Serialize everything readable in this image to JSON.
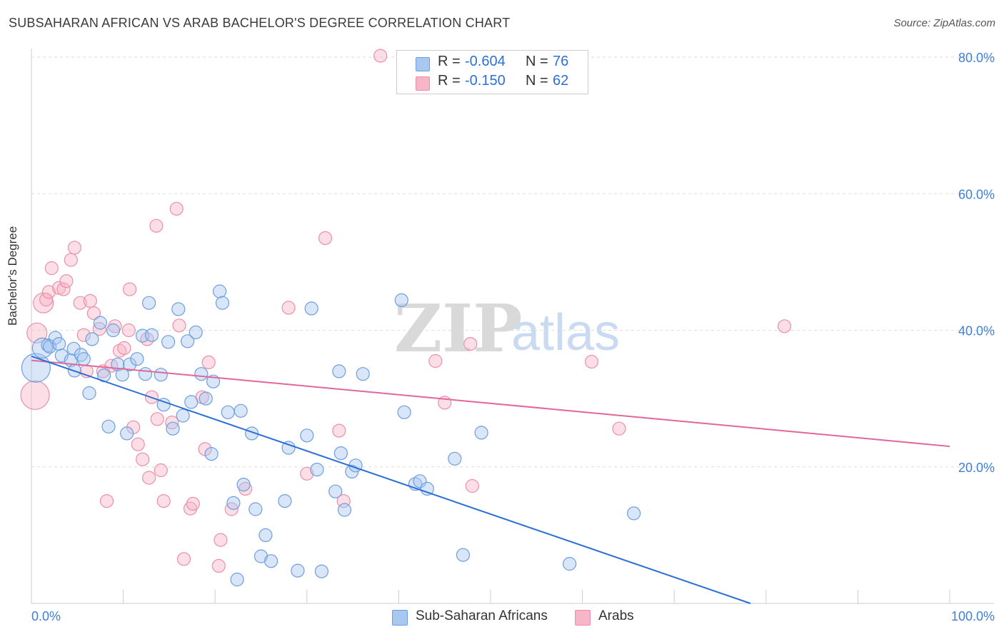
{
  "header": {
    "title": "SUBSAHARAN AFRICAN VS ARAB BACHELOR'S DEGREE CORRELATION CHART",
    "source": "Source: ZipAtlas.com"
  },
  "watermark": {
    "zip": "ZIP",
    "atlas": "atlas"
  },
  "legend": {
    "rows": [
      {
        "r_label": "R =",
        "r_value": "-0.604",
        "n_label": "N =",
        "n_value": "76",
        "color": "#a9c8f0"
      },
      {
        "r_label": "R =",
        "r_value": "-0.150",
        "n_label": "N =",
        "n_value": "62",
        "color": "#f7b6c8"
      }
    ]
  },
  "bottom_legend": {
    "items": [
      {
        "label": "Sub-Saharan Africans",
        "color": "#a9c8f0"
      },
      {
        "label": "Arabs",
        "color": "#f7b6c8"
      }
    ]
  },
  "colors": {
    "blue_fill": "#a9c8f0",
    "blue_stroke": "#6e9ee0",
    "blue_line": "#2a6fd6",
    "pink_fill": "#f7b6c8",
    "pink_stroke": "#ec8fab",
    "pink_line": "#e2679a",
    "tick_text": "#3f7fd6",
    "grid": "#dddddd"
  },
  "chart_data": {
    "type": "scatter",
    "title": "SUBSAHARAN AFRICAN VS ARAB BACHELOR'S DEGREE CORRELATION CHART",
    "xlabel": "",
    "ylabel": "Bachelor's Degree",
    "xlim": [
      0,
      100
    ],
    "ylim": [
      0,
      80
    ],
    "x_tick_labels": [
      "0.0%",
      "100.0%"
    ],
    "y_ticks": [
      20,
      40,
      60,
      80
    ],
    "y_tick_labels": [
      "20.0%",
      "40.0%",
      "60.0%",
      "80.0%"
    ],
    "grid": true,
    "legend_position": "top-center",
    "series": [
      {
        "name": "Sub-Saharan Africans",
        "r": -0.604,
        "n": 76,
        "trend": {
          "x": [
            0,
            78.3
          ],
          "y": [
            36.2,
            0
          ]
        },
        "points": [
          [
            0.5,
            34.5,
            3
          ],
          [
            1.2,
            37.4,
            2
          ],
          [
            1.8,
            37.8,
            1
          ],
          [
            2.0,
            37.6,
            1
          ],
          [
            2.6,
            38.9,
            1
          ],
          [
            3.0,
            38.0,
            1
          ],
          [
            3.3,
            36.3,
            1
          ],
          [
            4.3,
            35.6,
            1
          ],
          [
            4.6,
            37.3,
            1
          ],
          [
            4.7,
            34.1,
            1
          ],
          [
            5.4,
            36.4,
            1
          ],
          [
            5.7,
            35.8,
            1
          ],
          [
            6.3,
            30.8,
            1
          ],
          [
            6.6,
            38.7,
            1
          ],
          [
            7.5,
            41.1,
            1
          ],
          [
            7.9,
            33.4,
            1
          ],
          [
            8.4,
            25.9,
            1
          ],
          [
            8.9,
            40.0,
            1
          ],
          [
            9.4,
            35.0,
            1
          ],
          [
            9.9,
            33.5,
            1
          ],
          [
            10.4,
            24.9,
            1
          ],
          [
            10.7,
            35.0,
            1
          ],
          [
            11.5,
            35.8,
            1
          ],
          [
            12.1,
            39.2,
            1
          ],
          [
            12.4,
            33.6,
            1
          ],
          [
            12.8,
            44.0,
            1
          ],
          [
            13.1,
            39.3,
            1
          ],
          [
            14.1,
            33.5,
            1
          ],
          [
            14.4,
            29.1,
            1
          ],
          [
            14.9,
            38.3,
            1
          ],
          [
            15.4,
            25.6,
            1
          ],
          [
            16.0,
            43.1,
            1
          ],
          [
            16.5,
            27.5,
            1
          ],
          [
            17.0,
            38.4,
            1
          ],
          [
            17.4,
            29.5,
            1
          ],
          [
            17.9,
            39.7,
            1
          ],
          [
            18.5,
            33.6,
            1
          ],
          [
            19.0,
            30.0,
            1
          ],
          [
            19.6,
            21.9,
            1
          ],
          [
            19.8,
            32.5,
            1
          ],
          [
            20.5,
            45.7,
            1
          ],
          [
            20.8,
            44.0,
            1
          ],
          [
            21.4,
            28.0,
            1
          ],
          [
            22.0,
            14.7,
            1
          ],
          [
            22.4,
            3.5,
            1
          ],
          [
            22.8,
            28.2,
            1
          ],
          [
            23.1,
            17.4,
            1
          ],
          [
            24.0,
            24.9,
            1
          ],
          [
            24.4,
            13.8,
            1
          ],
          [
            25.0,
            6.9,
            1
          ],
          [
            25.5,
            10.0,
            1
          ],
          [
            26.1,
            6.2,
            1
          ],
          [
            27.6,
            15.0,
            1
          ],
          [
            28.0,
            22.8,
            1
          ],
          [
            29.0,
            4.8,
            1
          ],
          [
            30.0,
            24.6,
            1
          ],
          [
            30.5,
            43.2,
            1
          ],
          [
            31.1,
            19.6,
            1
          ],
          [
            31.6,
            4.7,
            1
          ],
          [
            33.1,
            16.4,
            1
          ],
          [
            33.5,
            34.0,
            1
          ],
          [
            33.7,
            22.0,
            1
          ],
          [
            34.1,
            13.7,
            1
          ],
          [
            34.9,
            19.3,
            1
          ],
          [
            35.3,
            20.2,
            1
          ],
          [
            36.1,
            33.6,
            1
          ],
          [
            40.3,
            44.4,
            1
          ],
          [
            40.6,
            28.0,
            1
          ],
          [
            41.8,
            17.5,
            1
          ],
          [
            42.3,
            17.9,
            1
          ],
          [
            43.1,
            16.8,
            1
          ],
          [
            46.1,
            21.2,
            1
          ],
          [
            47.0,
            7.1,
            1
          ],
          [
            49.0,
            25.0,
            1
          ],
          [
            58.6,
            5.8,
            1
          ],
          [
            65.6,
            13.2,
            1
          ]
        ]
      },
      {
        "name": "Arabs",
        "r": -0.15,
        "n": 62,
        "trend": {
          "x": [
            0,
            100
          ],
          "y": [
            35.6,
            23.0
          ]
        },
        "points": [
          [
            0.4,
            30.5,
            3
          ],
          [
            0.6,
            39.6,
            2
          ],
          [
            1.3,
            44.0,
            2
          ],
          [
            1.6,
            44.5,
            1
          ],
          [
            1.9,
            45.6,
            1
          ],
          [
            2.2,
            49.1,
            1
          ],
          [
            3.0,
            46.2,
            1
          ],
          [
            3.5,
            46.0,
            1
          ],
          [
            3.8,
            47.2,
            1
          ],
          [
            4.3,
            50.3,
            1
          ],
          [
            4.7,
            52.1,
            1
          ],
          [
            5.3,
            44.0,
            1
          ],
          [
            5.7,
            39.3,
            1
          ],
          [
            6.0,
            34.0,
            1
          ],
          [
            6.4,
            44.3,
            1
          ],
          [
            6.8,
            42.5,
            1
          ],
          [
            7.4,
            40.2,
            1
          ],
          [
            7.8,
            34.0,
            1
          ],
          [
            8.2,
            15.0,
            1
          ],
          [
            8.7,
            34.8,
            1
          ],
          [
            9.1,
            40.6,
            1
          ],
          [
            9.6,
            37.0,
            1
          ],
          [
            10.1,
            37.4,
            1
          ],
          [
            10.6,
            40.0,
            1
          ],
          [
            10.7,
            46.0,
            1
          ],
          [
            11.1,
            25.8,
            1
          ],
          [
            11.6,
            23.3,
            1
          ],
          [
            12.1,
            21.1,
            1
          ],
          [
            12.6,
            38.7,
            1
          ],
          [
            12.8,
            18.4,
            1
          ],
          [
            13.1,
            30.2,
            1
          ],
          [
            13.6,
            55.3,
            1
          ],
          [
            13.7,
            27.0,
            1
          ],
          [
            14.1,
            19.5,
            1
          ],
          [
            14.4,
            15.0,
            1
          ],
          [
            15.3,
            26.5,
            1
          ],
          [
            15.8,
            57.8,
            1
          ],
          [
            16.1,
            40.7,
            1
          ],
          [
            16.6,
            6.5,
            1
          ],
          [
            17.3,
            13.9,
            1
          ],
          [
            17.6,
            14.6,
            1
          ],
          [
            18.6,
            30.2,
            1
          ],
          [
            18.9,
            22.6,
            1
          ],
          [
            19.3,
            35.3,
            1
          ],
          [
            20.4,
            5.5,
            1
          ],
          [
            20.6,
            9.3,
            1
          ],
          [
            21.8,
            13.8,
            1
          ],
          [
            23.3,
            16.8,
            1
          ],
          [
            28.0,
            43.3,
            1
          ],
          [
            30.0,
            19.0,
            1
          ],
          [
            32.0,
            53.5,
            1
          ],
          [
            33.5,
            25.3,
            1
          ],
          [
            34.0,
            15.0,
            1
          ],
          [
            38.0,
            80.2,
            1
          ],
          [
            44.0,
            35.5,
            1
          ],
          [
            45.0,
            29.4,
            1
          ],
          [
            47.8,
            38.0,
            1
          ],
          [
            48.0,
            17.2,
            1
          ],
          [
            61.0,
            35.4,
            1
          ],
          [
            64.0,
            25.6,
            1
          ],
          [
            82.0,
            40.6,
            1
          ]
        ]
      }
    ]
  }
}
